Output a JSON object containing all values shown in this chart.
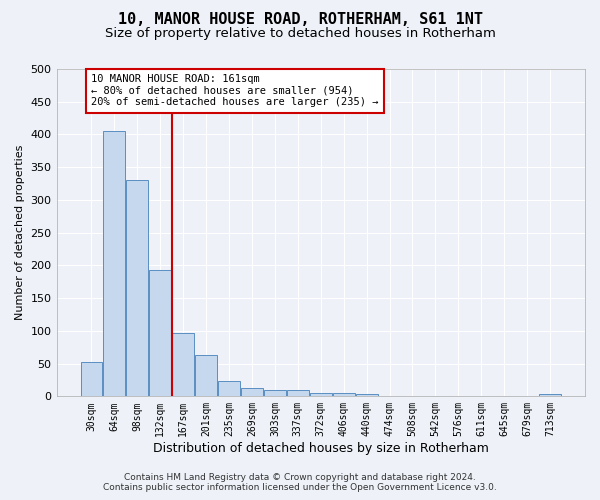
{
  "title": "10, MANOR HOUSE ROAD, ROTHERHAM, S61 1NT",
  "subtitle": "Size of property relative to detached houses in Rotherham",
  "xlabel": "Distribution of detached houses by size in Rotherham",
  "ylabel": "Number of detached properties",
  "categories": [
    "30sqm",
    "64sqm",
    "98sqm",
    "132sqm",
    "167sqm",
    "201sqm",
    "235sqm",
    "269sqm",
    "303sqm",
    "337sqm",
    "372sqm",
    "406sqm",
    "440sqm",
    "474sqm",
    "508sqm",
    "542sqm",
    "576sqm",
    "611sqm",
    "645sqm",
    "679sqm",
    "713sqm"
  ],
  "values": [
    52,
    406,
    330,
    193,
    97,
    63,
    24,
    13,
    10,
    10,
    5,
    5,
    4,
    1,
    1,
    1,
    0,
    1,
    0,
    1,
    4
  ],
  "bar_color": "#c5d8ed",
  "bar_edge_color": "#5a8fc2",
  "vline_index": 4,
  "vline_color": "#cc0000",
  "ylim": [
    0,
    500
  ],
  "yticks": [
    0,
    50,
    100,
    150,
    200,
    250,
    300,
    350,
    400,
    450,
    500
  ],
  "annotation_text": "10 MANOR HOUSE ROAD: 161sqm\n← 80% of detached houses are smaller (954)\n20% of semi-detached houses are larger (235) →",
  "annotation_box_facecolor": "#ffffff",
  "annotation_box_edgecolor": "#cc0000",
  "footer_line1": "Contains HM Land Registry data © Crown copyright and database right 2024.",
  "footer_line2": "Contains public sector information licensed under the Open Government Licence v3.0.",
  "background_color": "#eef2f8",
  "grid_color": "#ffffff",
  "title_fontsize": 11,
  "subtitle_fontsize": 9.5,
  "ylabel_fontsize": 8,
  "xlabel_fontsize": 9
}
